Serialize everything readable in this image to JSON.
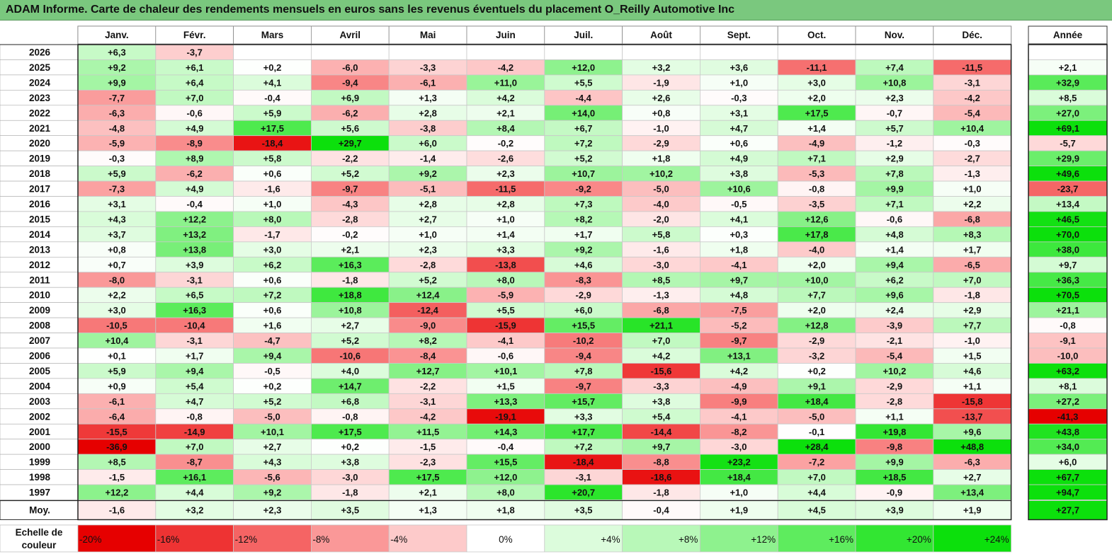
{
  "title": "ADAM Informe. Carte de chaleur des rendements mensuels en euros sans les revenus éventuels du placement O_Reilly Automotive Inc",
  "chart_data": {
    "type": "heatmap",
    "title": "ADAM Informe. Carte de chaleur des rendements mensuels en euros sans les revenus éventuels du placement O_Reilly Automotive Inc",
    "columns": [
      "Janv.",
      "Févr.",
      "Mars",
      "Avril",
      "Mai",
      "Juin",
      "Juil.",
      "Août",
      "Sept.",
      "Oct.",
      "Nov.",
      "Déc."
    ],
    "year_column_label": "Année",
    "average_row_label": "Moy.",
    "rows": [
      {
        "year": "2026",
        "months": [
          "+6,3",
          "-3,7",
          "",
          "",
          "",
          "",
          "",
          "",
          "",
          "",
          "",
          ""
        ],
        "annual": ""
      },
      {
        "year": "2025",
        "months": [
          "+9,2",
          "+6,1",
          "+0,2",
          "-6,0",
          "-3,3",
          "-4,2",
          "+12,0",
          "+3,2",
          "+3,6",
          "-11,1",
          "+7,4",
          "-11,5"
        ],
        "annual": "+2,1"
      },
      {
        "year": "2024",
        "months": [
          "+9,9",
          "+6,4",
          "+4,1",
          "-9,4",
          "-6,1",
          "+11,0",
          "+5,5",
          "-1,9",
          "+1,0",
          "+3,0",
          "+10,8",
          "-3,1"
        ],
        "annual": "+32,9"
      },
      {
        "year": "2023",
        "months": [
          "-7,7",
          "+7,0",
          "-0,4",
          "+6,9",
          "+1,3",
          "+4,2",
          "-4,4",
          "+2,6",
          "-0,3",
          "+2,0",
          "+2,3",
          "-4,2"
        ],
        "annual": "+8,5"
      },
      {
        "year": "2022",
        "months": [
          "-6,3",
          "-0,6",
          "+5,9",
          "-6,2",
          "+2,8",
          "+2,1",
          "+14,0",
          "+0,8",
          "+3,1",
          "+17,5",
          "-0,7",
          "-5,4"
        ],
        "annual": "+27,0"
      },
      {
        "year": "2021",
        "months": [
          "-4,8",
          "+4,9",
          "+17,5",
          "+5,6",
          "-3,8",
          "+8,4",
          "+6,7",
          "-1,0",
          "+4,7",
          "+1,4",
          "+5,7",
          "+10,4"
        ],
        "annual": "+69,1"
      },
      {
        "year": "2020",
        "months": [
          "-5,9",
          "-8,9",
          "-18,4",
          "+29,7",
          "+6,0",
          "-0,2",
          "+7,2",
          "-2,9",
          "+0,6",
          "-4,9",
          "-1,2",
          "-0,3"
        ],
        "annual": "-5,7"
      },
      {
        "year": "2019",
        "months": [
          "-0,3",
          "+8,9",
          "+5,8",
          "-2,2",
          "-1,4",
          "-2,6",
          "+5,2",
          "+1,8",
          "+4,9",
          "+7,1",
          "+2,9",
          "-2,7"
        ],
        "annual": "+29,9"
      },
      {
        "year": "2018",
        "months": [
          "+5,9",
          "-6,2",
          "+0,6",
          "+5,2",
          "+9,2",
          "+2,3",
          "+10,7",
          "+10,2",
          "+3,8",
          "-5,3",
          "+7,8",
          "-1,3"
        ],
        "annual": "+49,6"
      },
      {
        "year": "2017",
        "months": [
          "-7,3",
          "+4,9",
          "-1,6",
          "-9,7",
          "-5,1",
          "-11,5",
          "-9,2",
          "-5,0",
          "+10,6",
          "-0,8",
          "+9,9",
          "+1,0"
        ],
        "annual": "-23,7"
      },
      {
        "year": "2016",
        "months": [
          "+3,1",
          "-0,4",
          "+1,0",
          "-4,3",
          "+2,8",
          "+2,8",
          "+7,3",
          "-4,0",
          "-0,5",
          "-3,5",
          "+7,1",
          "+2,2"
        ],
        "annual": "+13,4"
      },
      {
        "year": "2015",
        "months": [
          "+4,3",
          "+12,2",
          "+8,0",
          "-2,8",
          "+2,7",
          "+1,0",
          "+8,2",
          "-2,0",
          "+4,1",
          "+12,6",
          "-0,6",
          "-6,8"
        ],
        "annual": "+46,5"
      },
      {
        "year": "2014",
        "months": [
          "+3,7",
          "+13,2",
          "-1,7",
          "-0,2",
          "+1,0",
          "+1,4",
          "+1,7",
          "+5,8",
          "+0,3",
          "+17,8",
          "+4,8",
          "+8,3"
        ],
        "annual": "+70,0"
      },
      {
        "year": "2013",
        "months": [
          "+0,8",
          "+13,8",
          "+3,0",
          "+2,1",
          "+2,3",
          "+3,3",
          "+9,2",
          "-1,6",
          "+1,8",
          "-4,0",
          "+1,4",
          "+1,7"
        ],
        "annual": "+38,0"
      },
      {
        "year": "2012",
        "months": [
          "+0,7",
          "+3,9",
          "+6,2",
          "+16,3",
          "-2,8",
          "-13,8",
          "+4,6",
          "-3,0",
          "-4,1",
          "+2,0",
          "+9,4",
          "-6,5"
        ],
        "annual": "+9,7"
      },
      {
        "year": "2011",
        "months": [
          "-8,0",
          "-3,1",
          "+0,6",
          "-1,8",
          "+5,2",
          "+8,0",
          "-8,3",
          "+8,5",
          "+9,7",
          "+10,0",
          "+6,2",
          "+7,0"
        ],
        "annual": "+36,3"
      },
      {
        "year": "2010",
        "months": [
          "+2,2",
          "+6,5",
          "+7,2",
          "+18,8",
          "+12,4",
          "-5,9",
          "-2,9",
          "-1,3",
          "+4,8",
          "+7,7",
          "+9,6",
          "-1,8"
        ],
        "annual": "+70,5"
      },
      {
        "year": "2009",
        "months": [
          "+3,0",
          "+16,3",
          "+0,6",
          "+10,8",
          "-12,4",
          "+5,5",
          "+6,0",
          "-6,8",
          "-7,5",
          "+2,0",
          "+2,4",
          "+2,9"
        ],
        "annual": "+21,1"
      },
      {
        "year": "2008",
        "months": [
          "-10,5",
          "-10,4",
          "+1,6",
          "+2,7",
          "-9,0",
          "-15,9",
          "+15,5",
          "+21,1",
          "-5,2",
          "+12,8",
          "-3,9",
          "+7,7"
        ],
        "annual": "-0,8"
      },
      {
        "year": "2007",
        "months": [
          "+10,4",
          "-3,1",
          "-4,7",
          "+5,2",
          "+8,2",
          "-4,1",
          "-10,2",
          "+7,0",
          "-9,7",
          "-2,9",
          "-2,1",
          "-1,0"
        ],
        "annual": "-9,1"
      },
      {
        "year": "2006",
        "months": [
          "+0,1",
          "+1,7",
          "+9,4",
          "-10,6",
          "-8,4",
          "-0,6",
          "-9,4",
          "+4,2",
          "+13,1",
          "-3,2",
          "-5,4",
          "+1,5"
        ],
        "annual": "-10,0"
      },
      {
        "year": "2005",
        "months": [
          "+5,9",
          "+9,4",
          "-0,5",
          "+4,0",
          "+12,7",
          "+10,1",
          "+7,8",
          "-15,6",
          "+4,2",
          "+0,2",
          "+10,2",
          "+4,6"
        ],
        "annual": "+63,2"
      },
      {
        "year": "2004",
        "months": [
          "+0,9",
          "+5,4",
          "+0,2",
          "+14,7",
          "-2,2",
          "+1,5",
          "-9,7",
          "-3,3",
          "-4,9",
          "+9,1",
          "-2,9",
          "+1,1"
        ],
        "annual": "+8,1"
      },
      {
        "year": "2003",
        "months": [
          "-6,1",
          "+4,7",
          "+5,2",
          "+6,8",
          "-3,1",
          "+13,3",
          "+15,7",
          "+3,8",
          "-9,9",
          "+18,4",
          "-2,8",
          "-15,8"
        ],
        "annual": "+27,2"
      },
      {
        "year": "2002",
        "months": [
          "-6,4",
          "-0,8",
          "-5,0",
          "-0,8",
          "-4,2",
          "-19,1",
          "+3,3",
          "+5,4",
          "-4,1",
          "-5,0",
          "+1,1",
          "-13,7"
        ],
        "annual": "-41,3"
      },
      {
        "year": "2001",
        "months": [
          "-15,5",
          "-14,9",
          "+10,1",
          "+17,5",
          "+11,5",
          "+14,3",
          "+17,7",
          "-14,4",
          "-8,2",
          "-0,1",
          "+19,8",
          "+9,6"
        ],
        "annual": "+43,8"
      },
      {
        "year": "2000",
        "months": [
          "-36,9",
          "+7,0",
          "+2,7",
          "+0,2",
          "-1,5",
          "-0,4",
          "+7,2",
          "+9,7",
          "-3,0",
          "+28,4",
          "-9,8",
          "+48,8"
        ],
        "annual": "+34,0"
      },
      {
        "year": "1999",
        "months": [
          "+8,5",
          "-8,7",
          "+4,3",
          "+3,8",
          "-2,3",
          "+15,5",
          "-18,4",
          "-8,8",
          "+23,2",
          "-7,2",
          "+9,9",
          "-6,3"
        ],
        "annual": "+6,0"
      },
      {
        "year": "1998",
        "months": [
          "-1,5",
          "+16,1",
          "-5,6",
          "-3,0",
          "+17,5",
          "+12,0",
          "-3,1",
          "-18,6",
          "+18,4",
          "+7,0",
          "+18,5",
          "+2,7"
        ],
        "annual": "+67,7"
      },
      {
        "year": "1997",
        "months": [
          "+12,2",
          "+4,4",
          "+9,2",
          "-1,8",
          "+2,1",
          "+8,0",
          "+20,7",
          "-1,8",
          "+1,0",
          "+4,4",
          "-0,9",
          "+13,4"
        ],
        "annual": "+94,7"
      }
    ],
    "average": {
      "months": [
        "-1,6",
        "+3,2",
        "+2,3",
        "+3,5",
        "+1,3",
        "+1,8",
        "+3,5",
        "-0,4",
        "+1,9",
        "+4,5",
        "+3,9",
        "+1,9"
      ],
      "annual": "+27,7"
    },
    "color_scale": {
      "label_line1": "Echelle de",
      "label_line2": "couleur",
      "stops": [
        {
          "label": "-20%",
          "value": -20,
          "color": "#e60000"
        },
        {
          "label": "-16%",
          "value": -16,
          "color": "#ee3333"
        },
        {
          "label": "-12%",
          "value": -12,
          "color": "#f56464"
        },
        {
          "label": "-8%",
          "value": -8,
          "color": "#fa9898"
        },
        {
          "label": "-4%",
          "value": -4,
          "color": "#fdcaca"
        },
        {
          "label": "0%",
          "value": 0,
          "color": "#ffffff"
        },
        {
          "label": "+4%",
          "value": 4,
          "color": "#dcfcdc"
        },
        {
          "label": "+8%",
          "value": 8,
          "color": "#b8f8b8"
        },
        {
          "label": "+12%",
          "value": 12,
          "color": "#8ef28e"
        },
        {
          "label": "+16%",
          "value": 16,
          "color": "#5eec5e"
        },
        {
          "label": "+20%",
          "value": 20,
          "color": "#32e632"
        },
        {
          "label": "+24%",
          "value": 24,
          "color": "#0ce00c"
        }
      ]
    }
  }
}
